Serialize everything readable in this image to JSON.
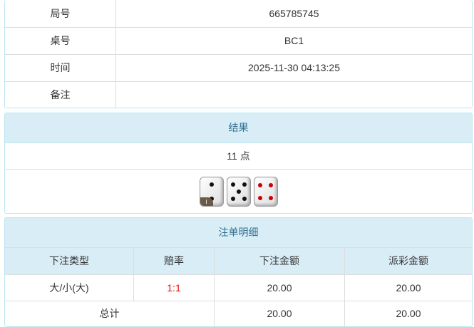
{
  "info": {
    "rows": [
      {
        "label": "局号",
        "value": "665785745"
      },
      {
        "label": "桌号",
        "value": "BC1"
      },
      {
        "label": "时间",
        "value": "2025-11-30 04:13:25"
      },
      {
        "label": "备注",
        "value": ""
      }
    ]
  },
  "result": {
    "title": "结果",
    "points": "11 点",
    "dice": [
      2,
      5,
      4
    ],
    "info_badge": "i"
  },
  "bets": {
    "title": "注单明细",
    "headers": [
      "下注类型",
      "赔率",
      "下注金额",
      "派彩金额"
    ],
    "rows": [
      {
        "type": "大/小(大)",
        "odds": "1:1",
        "amount": "20.00",
        "payout": "20.00"
      }
    ],
    "total": {
      "label": "总计",
      "amount": "20.00",
      "payout": "20.00"
    }
  },
  "colors": {
    "header_bg": "#d9edf7",
    "odds": "#ee0000"
  }
}
